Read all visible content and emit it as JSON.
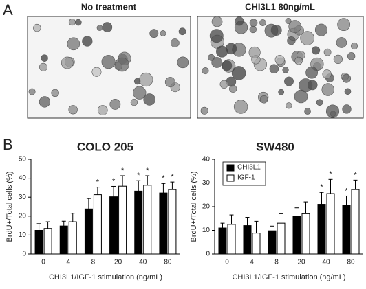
{
  "panel_a": {
    "label": "A",
    "images": [
      {
        "title": "No treatment"
      },
      {
        "title": "CHI3L1 80ng/mL"
      }
    ]
  },
  "panel_b": {
    "label": "B"
  },
  "chart_data": [
    {
      "type": "bar",
      "title": "COLO 205",
      "x_label": "CHI3L1/IGF-1 stimulation (ng/mL)",
      "y_label": "BrdU+/Total cells (%)",
      "categories": [
        "0",
        "4",
        "8",
        "20",
        "40",
        "80"
      ],
      "series": [
        {
          "name": "CHI3L1",
          "color": "#000000",
          "values": [
            12.5,
            14.8,
            23.8,
            30.2,
            33.2,
            32.2
          ],
          "errors": [
            3.5,
            2.5,
            5.5,
            5.5,
            5.5,
            5
          ],
          "significance": [
            null,
            null,
            null,
            "*",
            "*",
            "*"
          ]
        },
        {
          "name": "IGF-1",
          "color": "#ffffff",
          "values": [
            13.5,
            17,
            31.3,
            35.8,
            36.3,
            34
          ],
          "errors": [
            3.5,
            4.5,
            4,
            5.5,
            5,
            4
          ],
          "significance": [
            null,
            null,
            "*",
            "*",
            "*",
            "*"
          ]
        }
      ],
      "ylim": [
        0,
        50
      ],
      "yticks": [
        0,
        10,
        20,
        30,
        40,
        50
      ],
      "legend": false
    },
    {
      "type": "bar",
      "title": "SW480",
      "x_label": "CHI3L1/IGF-1 stimulation (ng/mL)",
      "y_label": "BrdU+/Total cells (%)",
      "categories": [
        "0",
        "4",
        "8",
        "20",
        "40",
        "80"
      ],
      "series": [
        {
          "name": "CHI3L1",
          "color": "#000000",
          "values": [
            11,
            12,
            9.8,
            16,
            21,
            20.5
          ],
          "errors": [
            2,
            3.5,
            2,
            3.5,
            5,
            4
          ],
          "significance": [
            null,
            null,
            null,
            null,
            "*",
            "*"
          ]
        },
        {
          "name": "IGF-1",
          "color": "#ffffff",
          "values": [
            12.5,
            8.8,
            13,
            17,
            25.5,
            27.2
          ],
          "errors": [
            4,
            5,
            4,
            5,
            6,
            4
          ],
          "significance": [
            null,
            null,
            null,
            null,
            "*",
            "*"
          ]
        }
      ],
      "ylim": [
        0,
        40
      ],
      "yticks": [
        0,
        10,
        20,
        30,
        40
      ],
      "legend": "upper left"
    }
  ]
}
